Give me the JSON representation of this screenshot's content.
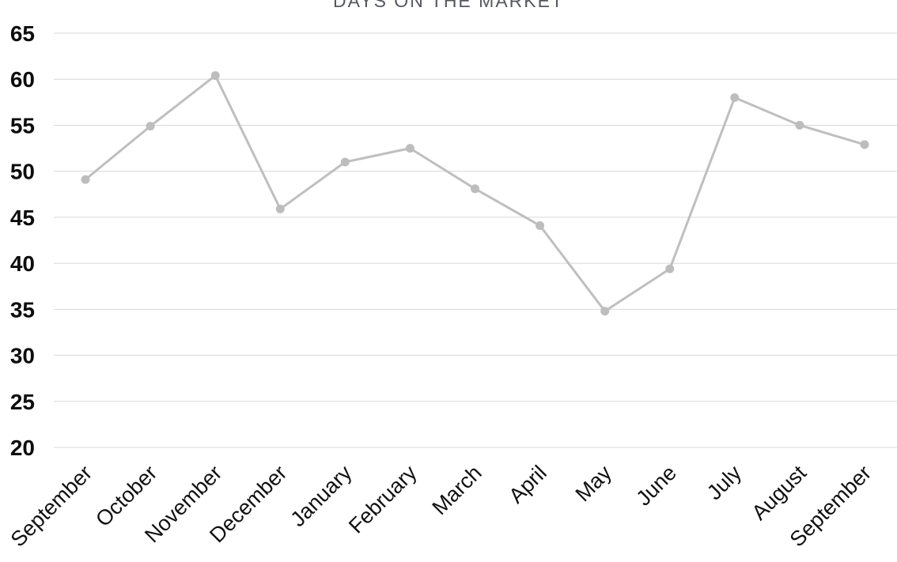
{
  "chart_data": {
    "type": "line",
    "title": "DAYS ON THE MARKET",
    "categories": [
      "September",
      "October",
      "November",
      "December",
      "January",
      "February",
      "March",
      "April",
      "May",
      "June",
      "July",
      "August",
      "September"
    ],
    "values": [
      49.1,
      54.9,
      60.4,
      45.9,
      51,
      52.5,
      48.1,
      44.1,
      34.8,
      39.4,
      58,
      55,
      52.9
    ],
    "ylim": [
      20,
      65
    ],
    "ytick_step": 5,
    "ytick_labels": [
      "20",
      "25",
      "30",
      "35",
      "40",
      "45",
      "50",
      "55",
      "60",
      "65"
    ],
    "grid": "horizontal",
    "legend": "none",
    "x_label_rotation": -45,
    "colors": {
      "line": "#bfbfbf",
      "marker": "#bdbdbd",
      "gridline": "#d9d9d9",
      "y_axis_label": "#0d0d0d",
      "x_axis_label": "#111111",
      "title": "#55585e",
      "background": "#ffffff"
    }
  }
}
